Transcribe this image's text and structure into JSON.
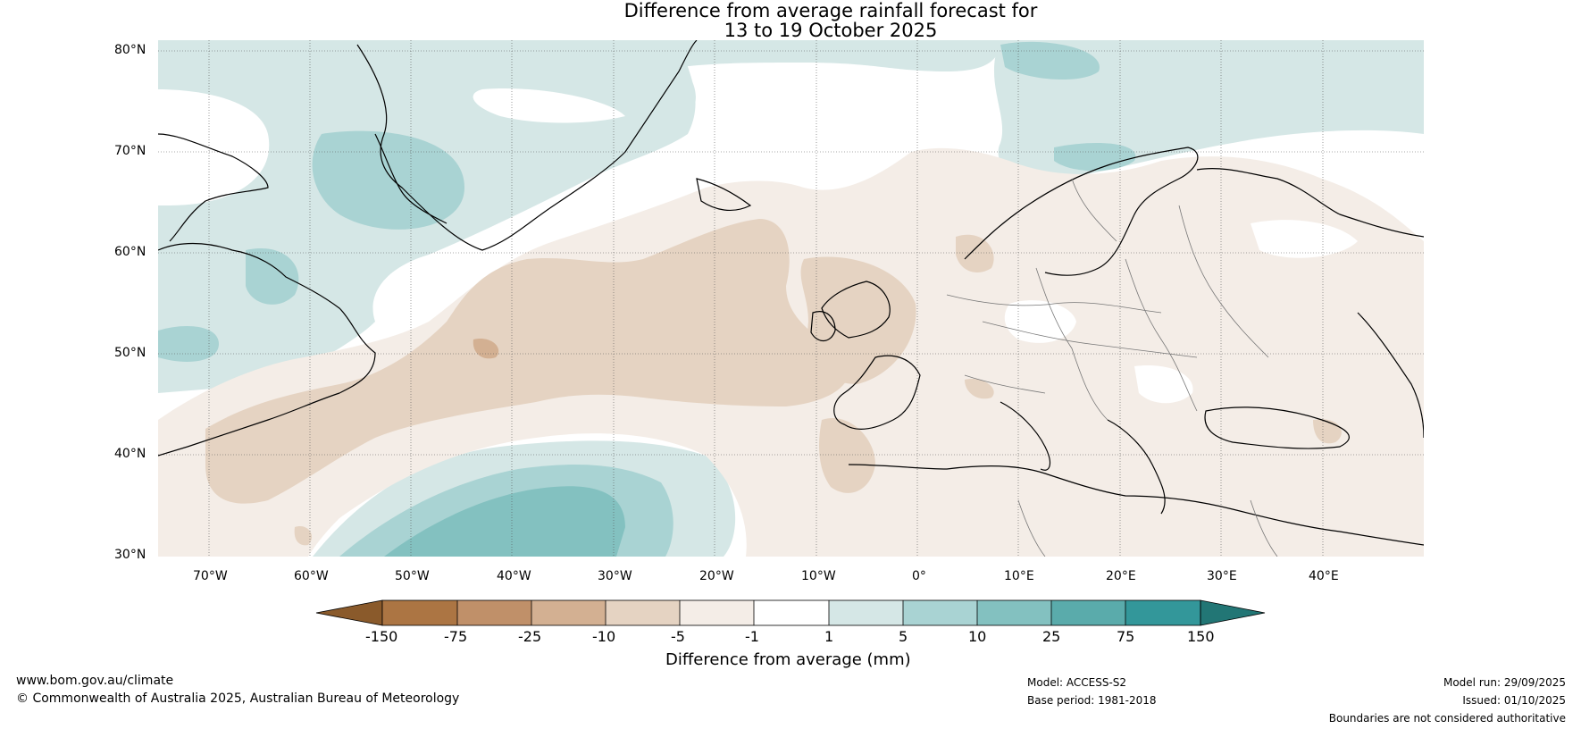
{
  "title": {
    "line1": "Difference from average rainfall forecast for",
    "line2": "13 to 19 October 2025"
  },
  "lat_labels": [
    "80°N",
    "70°N",
    "60°N",
    "50°N",
    "40°N",
    "30°N"
  ],
  "lon_labels": [
    "70°W",
    "60°W",
    "50°W",
    "40°W",
    "30°W",
    "20°W",
    "10°W",
    "0°",
    "10°E",
    "20°E",
    "30°E",
    "40°E"
  ],
  "colorbar": {
    "ticks": [
      "-150",
      "-75",
      "-25",
      "-10",
      "-5",
      "-1",
      "1",
      "5",
      "10",
      "25",
      "75",
      "150"
    ],
    "colors": [
      "#8a5a2b",
      "#ac7543",
      "#c09069",
      "#d3b092",
      "#e5d3c2",
      "#f4ede7",
      "#ffffff",
      "#d5e7e6",
      "#a9d3d3",
      "#83c1c0",
      "#5aabab",
      "#33979a",
      "#227675"
    ],
    "label": "Difference from average (mm)"
  },
  "footer": {
    "left1": "www.bom.gov.au/climate",
    "left2": "© Commonwealth of Australia 2025, Australian Bureau of Meteorology",
    "model": "Model: ACCESS-S2",
    "base": "Base period: 1981-2018",
    "run": "Model run: 29/09/2025",
    "issued": "Issued: 01/10/2025",
    "disclaimer": "Boundaries are not considered authoritative"
  }
}
